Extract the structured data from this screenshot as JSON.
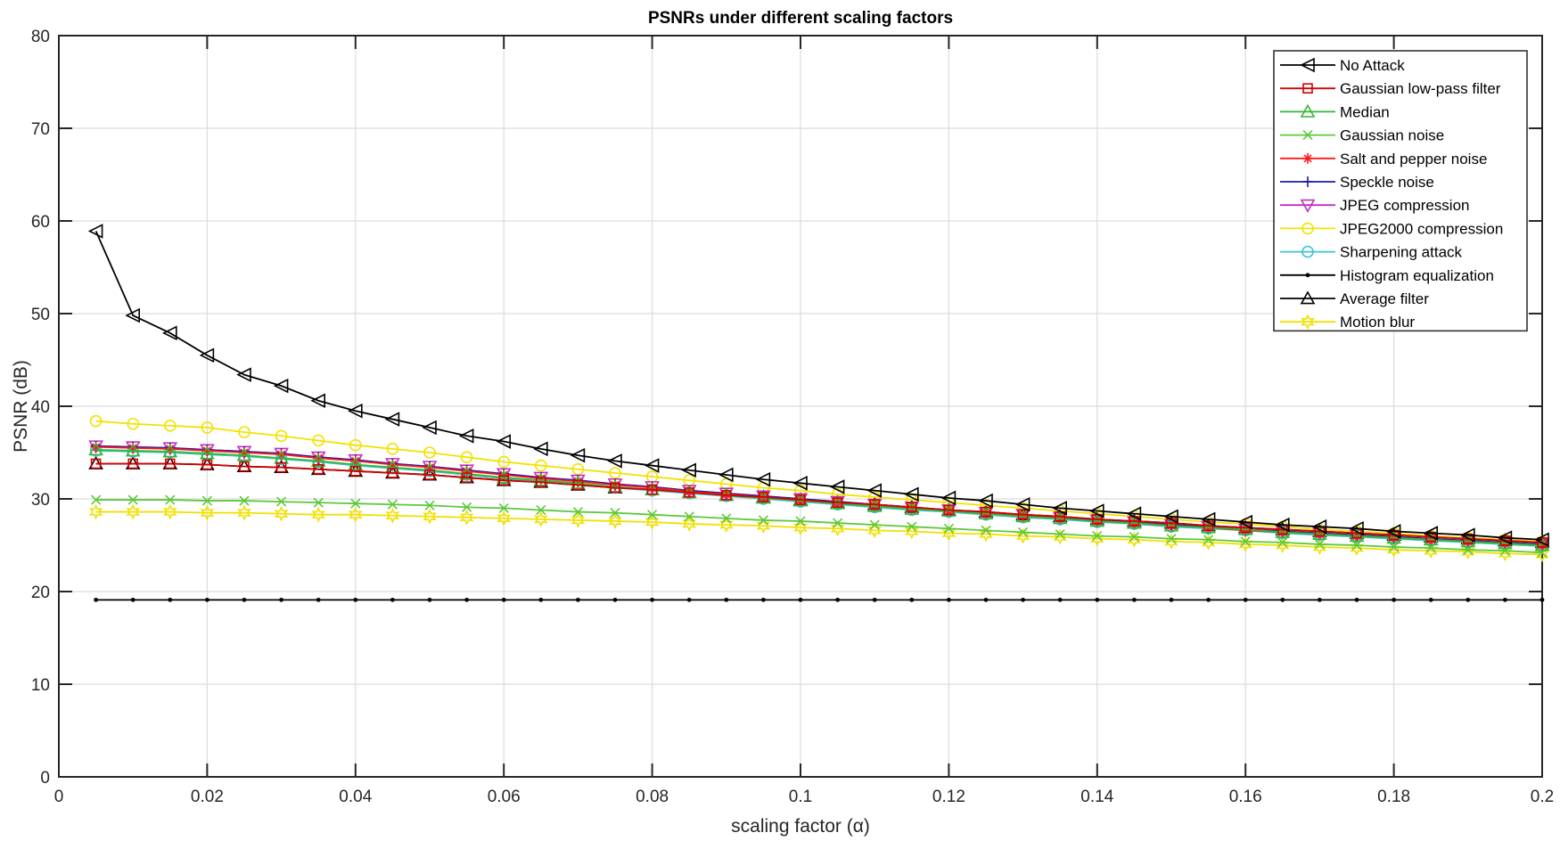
{
  "chart_data": {
    "type": "line",
    "title": "PSNRs under different scaling factors",
    "xlabel": "scaling factor (α)",
    "ylabel": "PSNR (dB)",
    "xlim": [
      0,
      0.2
    ],
    "ylim": [
      0,
      80
    ],
    "xticks": [
      "0",
      "0.02",
      "0.04",
      "0.06",
      "0.08",
      "0.1",
      "0.12",
      "0.14",
      "0.16",
      "0.18",
      "0.2"
    ],
    "yticks": [
      "0",
      "10",
      "20",
      "30",
      "40",
      "50",
      "60",
      "70",
      "80"
    ],
    "grid": true,
    "legend_position": "top-right",
    "x": [
      0.005,
      0.01,
      0.015,
      0.02,
      0.025,
      0.03,
      0.035,
      0.04,
      0.045,
      0.05,
      0.055,
      0.06,
      0.065,
      0.07,
      0.075,
      0.08,
      0.085,
      0.09,
      0.095,
      0.1,
      0.105,
      0.11,
      0.115,
      0.12,
      0.125,
      0.13,
      0.135,
      0.14,
      0.145,
      0.15,
      0.155,
      0.16,
      0.165,
      0.17,
      0.175,
      0.18,
      0.185,
      0.19,
      0.195,
      0.2
    ],
    "series": [
      {
        "name": "No Attack",
        "color": "#000000",
        "marker": "triangle-left",
        "values": [
          58.9,
          49.8,
          47.9,
          45.5,
          43.4,
          42.2,
          40.6,
          39.5,
          38.6,
          37.7,
          36.8,
          36.2,
          35.4,
          34.7,
          34.1,
          33.6,
          33.1,
          32.6,
          32.1,
          31.7,
          31.3,
          30.9,
          30.5,
          30.1,
          29.8,
          29.4,
          29.0,
          28.7,
          28.4,
          28.1,
          27.8,
          27.5,
          27.2,
          27.0,
          26.8,
          26.5,
          26.3,
          26.1,
          25.8,
          25.6
        ]
      },
      {
        "name": "Gaussian low-pass filter",
        "color": "#d40000",
        "marker": "square",
        "values": [
          33.8,
          33.8,
          33.8,
          33.7,
          33.5,
          33.4,
          33.2,
          33.0,
          32.8,
          32.6,
          32.3,
          32.0,
          31.8,
          31.5,
          31.2,
          31.0,
          30.7,
          30.4,
          30.2,
          29.9,
          29.6,
          29.4,
          29.1,
          28.8,
          28.6,
          28.3,
          28.1,
          27.8,
          27.6,
          27.4,
          27.1,
          26.9,
          26.7,
          26.5,
          26.3,
          26.1,
          25.9,
          25.7,
          25.5,
          25.3
        ]
      },
      {
        "name": "Median",
        "color": "#33b833",
        "marker": "triangle-up",
        "values": [
          35.3,
          35.2,
          35.1,
          34.9,
          34.7,
          34.4,
          34.1,
          33.7,
          33.4,
          33.1,
          32.7,
          32.3,
          32.0,
          31.7,
          31.3,
          31.0,
          30.7,
          30.4,
          30.1,
          29.8,
          29.5,
          29.2,
          28.9,
          28.7,
          28.4,
          28.1,
          27.9,
          27.6,
          27.4,
          27.1,
          26.9,
          26.7,
          26.4,
          26.2,
          26.0,
          25.8,
          25.6,
          25.4,
          25.2,
          25.0
        ]
      },
      {
        "name": "Gaussian noise",
        "color": "#5cc83c",
        "marker": "x",
        "values": [
          29.9,
          29.9,
          29.9,
          29.8,
          29.8,
          29.7,
          29.6,
          29.5,
          29.4,
          29.3,
          29.1,
          29.0,
          28.8,
          28.6,
          28.5,
          28.3,
          28.1,
          27.9,
          27.7,
          27.6,
          27.4,
          27.2,
          27.0,
          26.8,
          26.6,
          26.4,
          26.2,
          26.0,
          25.9,
          25.7,
          25.6,
          25.4,
          25.3,
          25.1,
          25.0,
          24.8,
          24.7,
          24.5,
          24.4,
          24.2
        ]
      },
      {
        "name": "Salt and pepper noise",
        "color": "#ff1a1a",
        "marker": "asterisk",
        "values": [
          35.6,
          35.5,
          35.4,
          35.2,
          35.0,
          34.8,
          34.4,
          34.1,
          33.7,
          33.4,
          33.0,
          32.6,
          32.2,
          31.9,
          31.5,
          31.2,
          30.8,
          30.5,
          30.2,
          29.9,
          29.6,
          29.3,
          29.0,
          28.7,
          28.4,
          28.2,
          27.9,
          27.6,
          27.4,
          27.1,
          26.9,
          26.6,
          26.4,
          26.2,
          26.0,
          25.8,
          25.6,
          25.4,
          25.2,
          25.0
        ]
      },
      {
        "name": "Speckle noise",
        "color": "#1a1aa8",
        "marker": "plus",
        "values": [
          35.7,
          35.6,
          35.5,
          35.3,
          35.1,
          34.9,
          34.5,
          34.2,
          33.8,
          33.5,
          33.1,
          32.7,
          32.3,
          32.0,
          31.6,
          31.3,
          30.9,
          30.6,
          30.3,
          30.0,
          29.7,
          29.4,
          29.1,
          28.8,
          28.5,
          28.3,
          28.0,
          27.7,
          27.5,
          27.2,
          27.0,
          26.7,
          26.5,
          26.3,
          26.1,
          25.9,
          25.7,
          25.5,
          25.3,
          25.1
        ]
      },
      {
        "name": "JPEG compression",
        "color": "#c030c0",
        "marker": "triangle-down",
        "values": [
          35.7,
          35.6,
          35.5,
          35.3,
          35.1,
          34.9,
          34.5,
          34.2,
          33.8,
          33.5,
          33.1,
          32.7,
          32.3,
          32.0,
          31.6,
          31.3,
          30.9,
          30.6,
          30.3,
          30.0,
          29.7,
          29.4,
          29.1,
          28.8,
          28.5,
          28.3,
          28.0,
          27.7,
          27.5,
          27.2,
          27.0,
          26.7,
          26.5,
          26.3,
          26.1,
          25.9,
          25.7,
          25.5,
          25.3,
          25.1
        ]
      },
      {
        "name": "JPEG2000 compression",
        "color": "#f2e200",
        "marker": "circle",
        "values": [
          38.4,
          38.1,
          37.9,
          37.7,
          37.2,
          36.8,
          36.3,
          35.8,
          35.4,
          35.0,
          34.5,
          34.0,
          33.6,
          33.2,
          32.8,
          32.4,
          32.0,
          31.6,
          31.2,
          30.9,
          30.5,
          30.2,
          29.9,
          29.6,
          29.3,
          29.0,
          28.7,
          28.4,
          28.1,
          27.8,
          27.5,
          27.3,
          27.0,
          26.7,
          26.5,
          26.3,
          26.0,
          25.8,
          25.6,
          25.4
        ]
      },
      {
        "name": "Sharpening attack",
        "color": "#40c4d0",
        "marker": "circle",
        "values": [
          35.2,
          35.1,
          35.0,
          34.8,
          34.6,
          34.3,
          34.0,
          33.6,
          33.3,
          33.0,
          32.6,
          32.2,
          31.9,
          31.6,
          31.2,
          30.9,
          30.6,
          30.3,
          30.0,
          29.7,
          29.4,
          29.1,
          28.8,
          28.6,
          28.3,
          28.0,
          27.8,
          27.5,
          27.3,
          27.0,
          26.8,
          26.6,
          26.3,
          26.1,
          25.9,
          25.7,
          25.5,
          25.3,
          25.1,
          24.9
        ]
      },
      {
        "name": "Histogram equalization",
        "color": "#000000",
        "marker": "dot",
        "values": [
          19.1,
          19.1,
          19.1,
          19.1,
          19.1,
          19.1,
          19.1,
          19.1,
          19.1,
          19.1,
          19.1,
          19.1,
          19.1,
          19.1,
          19.1,
          19.1,
          19.1,
          19.1,
          19.1,
          19.1,
          19.1,
          19.1,
          19.1,
          19.1,
          19.1,
          19.1,
          19.1,
          19.1,
          19.1,
          19.1,
          19.1,
          19.1,
          19.1,
          19.1,
          19.1,
          19.1,
          19.1,
          19.1,
          19.1,
          19.1
        ]
      },
      {
        "name": "Average filter",
        "color": "#000000",
        "marker": "triangle-up",
        "values": [
          33.8,
          33.8,
          33.8,
          33.7,
          33.5,
          33.4,
          33.2,
          33.0,
          32.8,
          32.6,
          32.3,
          32.0,
          31.8,
          31.5,
          31.2,
          31.0,
          30.7,
          30.4,
          30.2,
          29.9,
          29.6,
          29.4,
          29.1,
          28.8,
          28.6,
          28.3,
          28.1,
          27.8,
          27.6,
          27.4,
          27.1,
          26.9,
          26.7,
          26.5,
          26.3,
          26.1,
          25.9,
          25.7,
          25.5,
          25.3
        ]
      },
      {
        "name": "Motion blur",
        "color": "#f0e000",
        "marker": "hexagram",
        "values": [
          28.6,
          28.6,
          28.6,
          28.5,
          28.5,
          28.4,
          28.3,
          28.3,
          28.2,
          28.1,
          28.0,
          27.9,
          27.8,
          27.7,
          27.6,
          27.5,
          27.3,
          27.2,
          27.1,
          26.9,
          26.8,
          26.6,
          26.5,
          26.3,
          26.2,
          26.0,
          25.9,
          25.7,
          25.6,
          25.4,
          25.3,
          25.1,
          25.0,
          24.8,
          24.7,
          24.5,
          24.4,
          24.3,
          24.1,
          24.0
        ]
      }
    ]
  }
}
